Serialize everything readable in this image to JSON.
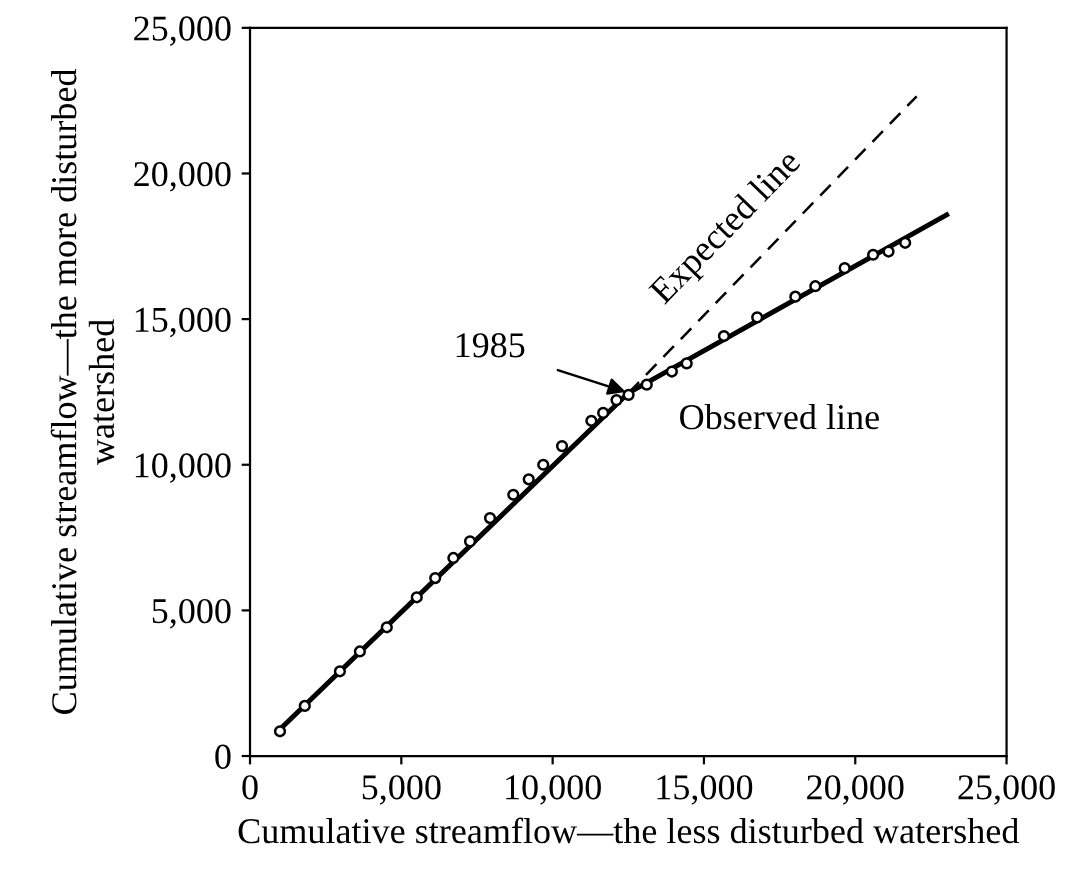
{
  "chart_data": {
    "type": "scatter",
    "xlabel": "Cumulative streamflow—the less disturbed watershed",
    "ylabel": "Cumulative streamflow—the more disturbed\nwatershed",
    "xlim": [
      0,
      25000
    ],
    "ylim": [
      0,
      25000
    ],
    "xticks": [
      0,
      {
        "value": 5000,
        "label": "5,000"
      },
      {
        "value": 10000,
        "label": "10,000"
      },
      {
        "value": 15000,
        "label": "15,000"
      },
      {
        "value": 20000,
        "label": "20,000"
      },
      {
        "value": 25000,
        "label": "25,000"
      }
    ],
    "yticks": [
      0,
      {
        "value": 5000,
        "label": "5,000"
      },
      {
        "value": 10000,
        "label": "10,000"
      },
      {
        "value": 15000,
        "label": "15,000"
      },
      {
        "value": 20000,
        "label": "20,000"
      },
      {
        "value": 25000,
        "label": "25,000"
      }
    ],
    "grid": false,
    "series": [
      {
        "marker": "circle",
        "color": "#000000",
        "x": [
          990,
          1810,
          2970,
          3630,
          4520,
          5510,
          6120,
          6720,
          7270,
          7930,
          8700,
          9210,
          9690,
          10310,
          11280,
          11670,
          12110,
          12510,
          13110,
          13940,
          14430,
          15660,
          16760,
          18020,
          18680,
          19650,
          20590,
          21100,
          21650
        ],
        "values": [
          850,
          1720,
          2910,
          3590,
          4420,
          5450,
          6110,
          6800,
          7370,
          8170,
          8970,
          9500,
          10000,
          10640,
          11510,
          11780,
          12220,
          12400,
          12750,
          13200,
          13480,
          14420,
          15060,
          15770,
          16130,
          16750,
          17210,
          17320,
          17620
        ]
      },
      {
        "type": "line",
        "marker": "none",
        "name": "Observed line",
        "color": "#000000",
        "line_style": "solid",
        "x": [
          990,
          12510,
          23020
        ],
        "values": [
          920,
          12470,
          18580
        ]
      },
      {
        "type": "line",
        "marker": "none",
        "name": "Expected line",
        "color": "#000000",
        "line_style": "dashed",
        "x": [
          12510,
          22030
        ],
        "values": [
          12470,
          22650
        ]
      }
    ],
    "annotations": [
      {
        "text": "1985",
        "x": 12510,
        "y": 12470
      }
    ]
  }
}
